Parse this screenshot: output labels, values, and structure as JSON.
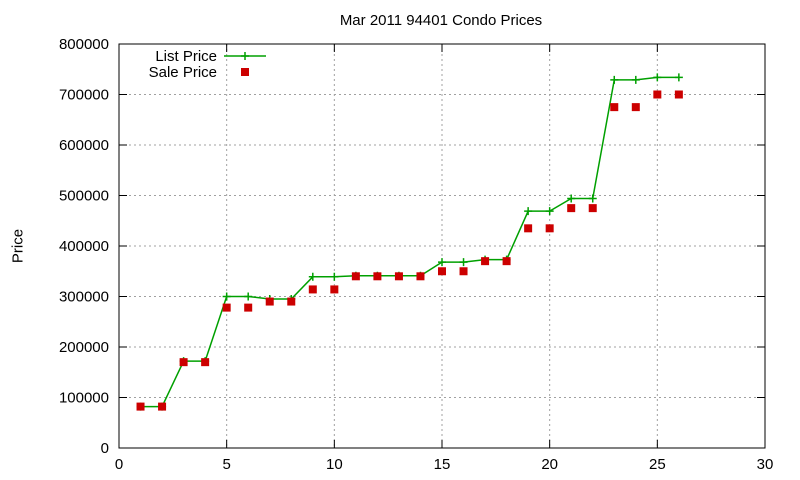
{
  "chart_data": {
    "type": "line",
    "title": "Mar 2011 94401 Condo Prices",
    "xlabel": "",
    "ylabel": "Price",
    "xlim": [
      0,
      30
    ],
    "ylim": [
      0,
      800000
    ],
    "xticks": [
      0,
      5,
      10,
      15,
      20,
      25,
      30
    ],
    "yticks": [
      0,
      100000,
      200000,
      300000,
      400000,
      500000,
      600000,
      700000,
      800000
    ],
    "grid": true,
    "legend_position": "top-left",
    "series": [
      {
        "name": "List Price",
        "style": "line-with-plus-markers",
        "color": "#00a000",
        "x": [
          1,
          2,
          3,
          4,
          5,
          6,
          7,
          8,
          9,
          10,
          11,
          12,
          13,
          14,
          15,
          16,
          17,
          18,
          19,
          20,
          21,
          22,
          23,
          24,
          25,
          26
        ],
        "y": [
          82000,
          82000,
          172000,
          172000,
          300000,
          300000,
          295000,
          295000,
          339000,
          339000,
          341000,
          341000,
          341000,
          341000,
          368000,
          368000,
          373000,
          373000,
          469000,
          469000,
          494000,
          494000,
          729000,
          729000,
          734000,
          734000
        ]
      },
      {
        "name": "Sale Price",
        "style": "square-markers",
        "color": "#cc0000",
        "x": [
          1,
          2,
          3,
          4,
          5,
          6,
          7,
          8,
          9,
          10,
          11,
          12,
          13,
          14,
          15,
          16,
          17,
          18,
          19,
          20,
          21,
          22,
          23,
          24,
          25,
          26
        ],
        "y": [
          82000,
          82000,
          170000,
          170000,
          278000,
          278000,
          290000,
          290000,
          314000,
          314000,
          340000,
          340000,
          340000,
          340000,
          350000,
          350000,
          370000,
          370000,
          435000,
          435000,
          475000,
          475000,
          675000,
          675000,
          700000,
          700000
        ]
      }
    ]
  }
}
